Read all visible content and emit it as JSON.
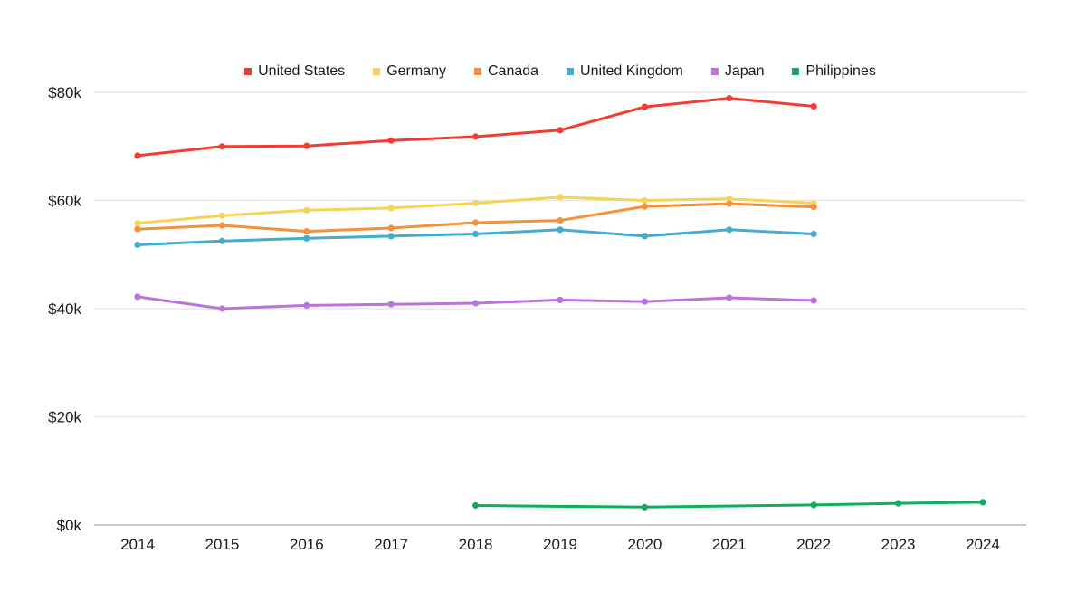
{
  "page": {
    "background_color": "#ffffff",
    "text_color": "#1a1a1a",
    "gridline_color": "#e4e4e4",
    "axis_line_color": "#b3b3b3"
  },
  "chart_data": {
    "type": "line",
    "title": "",
    "xlabel": "",
    "ylabel": "",
    "x_labels": [
      "2014",
      "2015",
      "2016",
      "2017",
      "2018",
      "2019",
      "2020",
      "2021",
      "2022",
      "2023",
      "2024"
    ],
    "x_range": [
      2014,
      2024
    ],
    "y_tick_labels": [
      "$0k",
      "$20k",
      "$40k",
      "$60k",
      "$80k"
    ],
    "y_tick_values": [
      0,
      20000,
      40000,
      60000,
      80000
    ],
    "ylim": [
      0,
      80000
    ],
    "grid": true,
    "legend_position": "top",
    "values_unit": "USD per year",
    "series": [
      {
        "name": "United States",
        "color": "#f23c33",
        "years": [
          2014,
          2015,
          2016,
          2017,
          2018,
          2019,
          2020,
          2021,
          2022
        ],
        "values": [
          68300,
          70000,
          70100,
          71100,
          71800,
          73000,
          77300,
          78900,
          77400
        ]
      },
      {
        "name": "Germany",
        "color": "#f7d355",
        "years": [
          2014,
          2015,
          2016,
          2017,
          2018,
          2019,
          2020,
          2021,
          2022
        ],
        "values": [
          55800,
          57200,
          58200,
          58600,
          59500,
          60600,
          60000,
          60300,
          59500
        ]
      },
      {
        "name": "Canada",
        "color": "#f0923f",
        "years": [
          2014,
          2015,
          2016,
          2017,
          2018,
          2019,
          2020,
          2021,
          2022
        ],
        "values": [
          54700,
          55400,
          54300,
          54900,
          55900,
          56300,
          58900,
          59400,
          58800
        ]
      },
      {
        "name": "United Kingdom",
        "color": "#45acd1",
        "years": [
          2014,
          2015,
          2016,
          2017,
          2018,
          2019,
          2020,
          2021,
          2022
        ],
        "values": [
          51800,
          52500,
          53000,
          53400,
          53800,
          54600,
          53400,
          54600,
          53800
        ]
      },
      {
        "name": "Japan",
        "color": "#bc72dc",
        "years": [
          2014,
          2015,
          2016,
          2017,
          2018,
          2019,
          2020,
          2021,
          2022
        ],
        "values": [
          42200,
          40000,
          40600,
          40800,
          41000,
          41600,
          41300,
          42000,
          41500
        ]
      },
      {
        "name": "Philippines",
        "color": "#10ad5d",
        "years": [
          2018,
          2020,
          2022,
          2023,
          2024
        ],
        "values": [
          3600,
          3300,
          3700,
          4000,
          4200
        ]
      }
    ]
  }
}
